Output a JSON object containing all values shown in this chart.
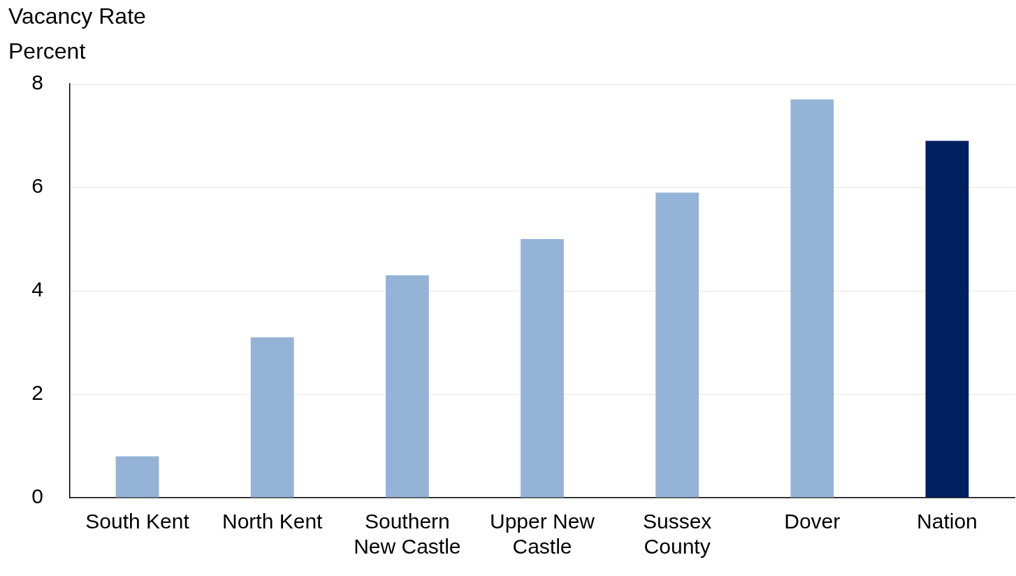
{
  "chart_data": {
    "type": "bar",
    "title": "Vacancy Rate",
    "ylabel": "Percent",
    "categories": [
      "South Kent",
      "North Kent",
      "Southern\nNew Castle",
      "Upper New\nCastle",
      "Sussex\nCounty",
      "Dover",
      "Nation"
    ],
    "values": [
      0.8,
      3.1,
      4.3,
      5.0,
      5.9,
      7.7,
      6.9
    ],
    "colors": [
      "#95b3d7",
      "#95b3d7",
      "#95b3d7",
      "#95b3d7",
      "#95b3d7",
      "#95b3d7",
      "#002060"
    ],
    "ylim": [
      0,
      8
    ],
    "yticks": [
      0,
      2,
      4,
      6,
      8
    ],
    "grid": "y",
    "legend": false
  }
}
